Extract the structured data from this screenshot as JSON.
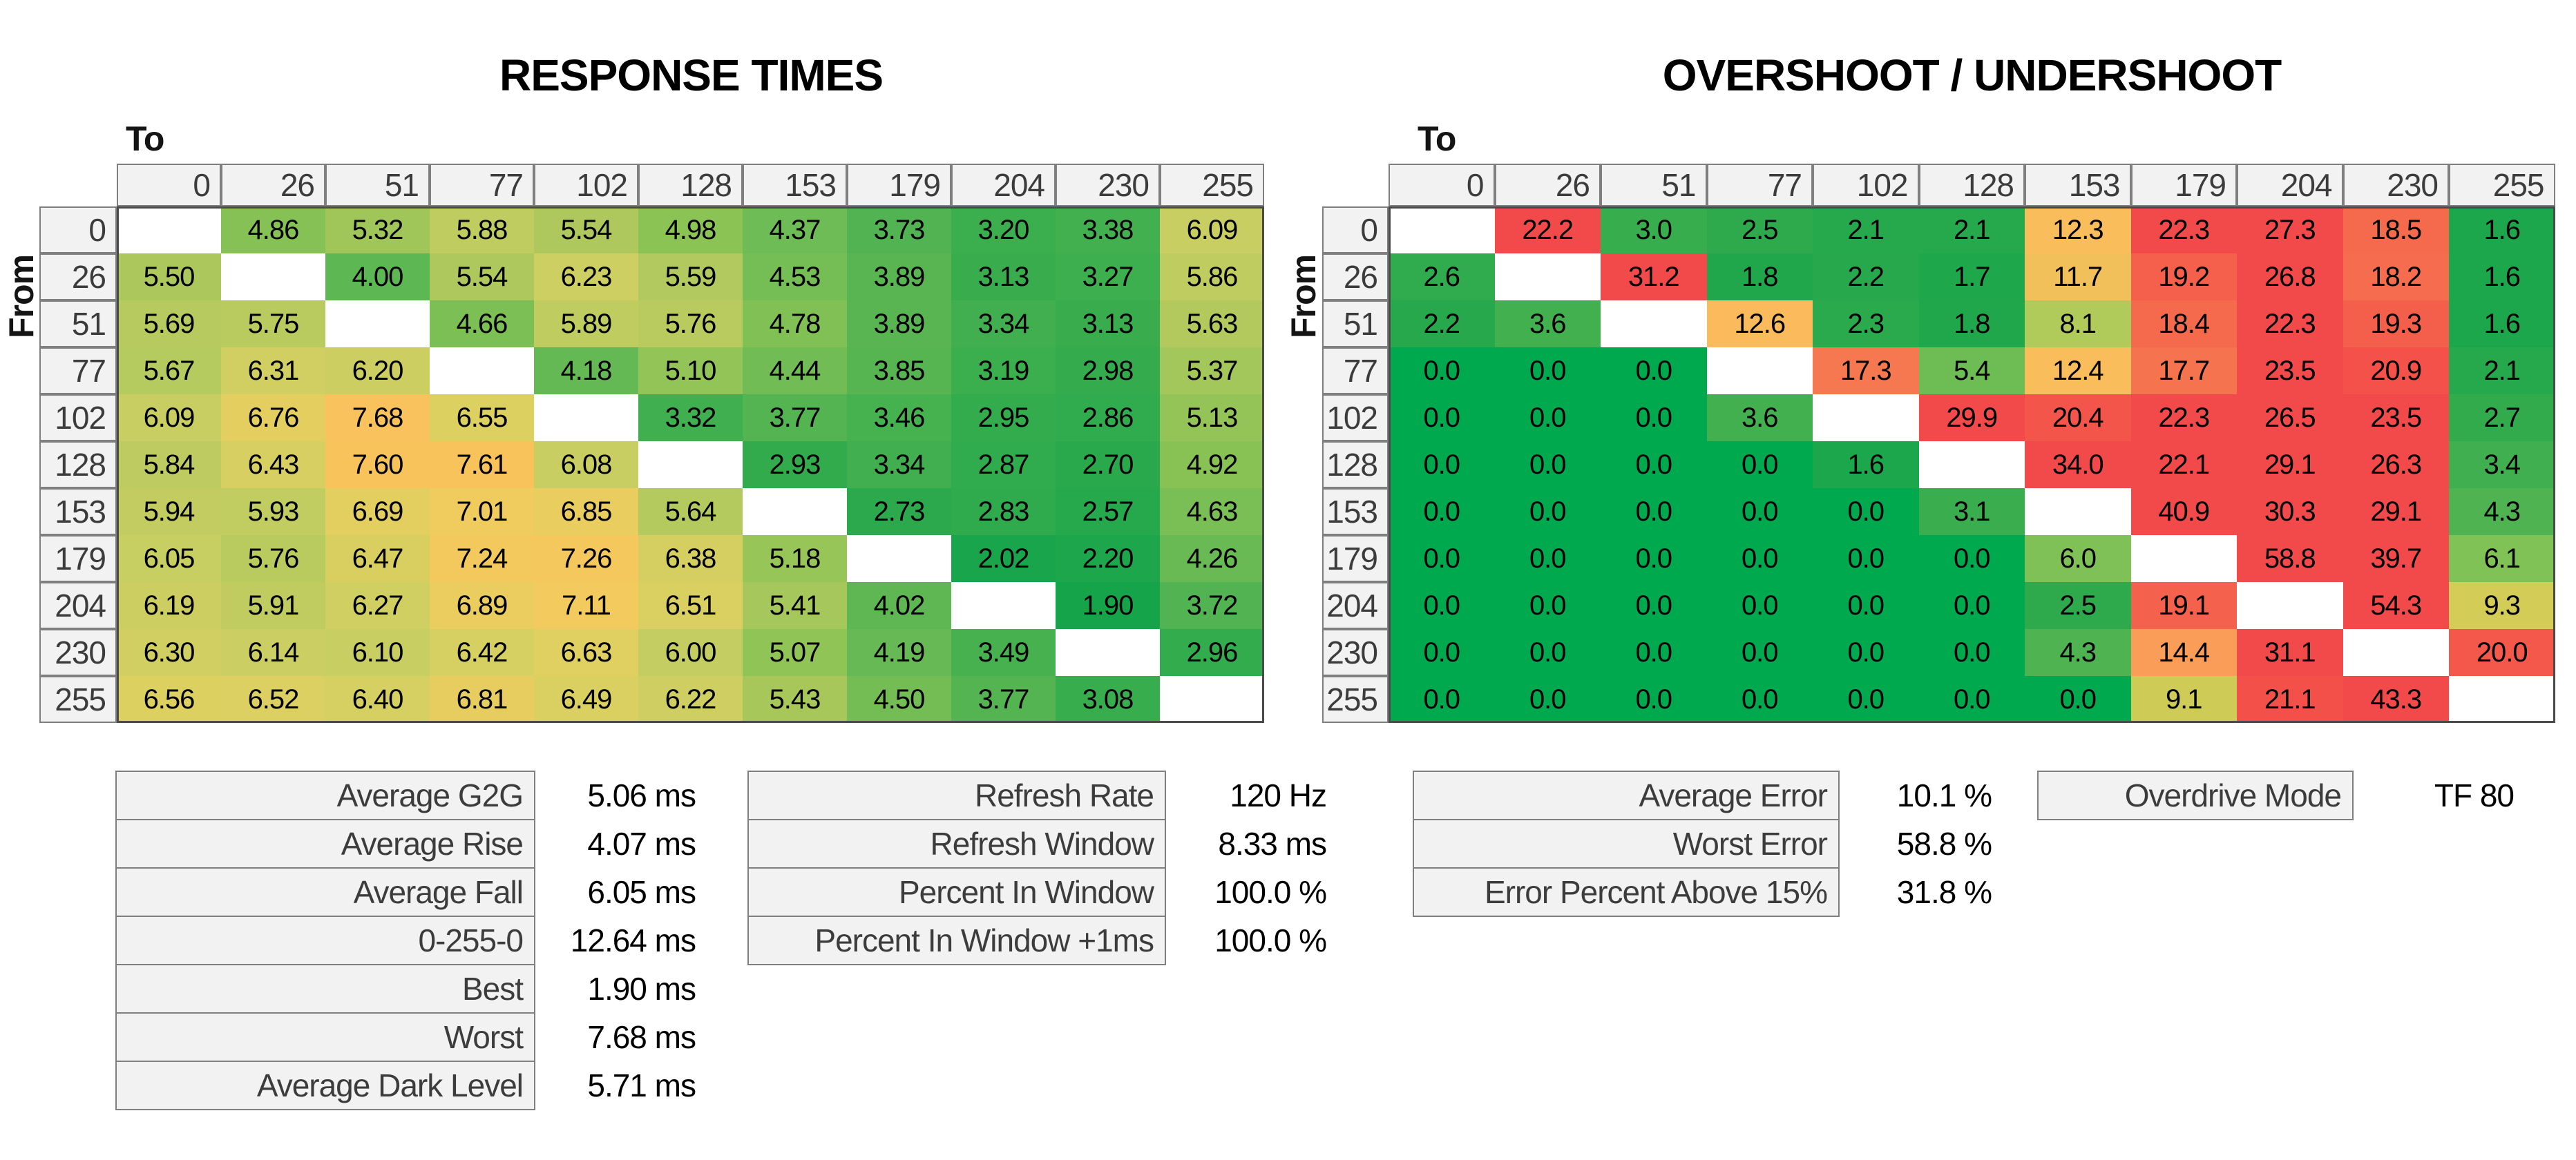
{
  "colors": {
    "background": "#FFFFFF",
    "header_bg": "#F2F2F2",
    "header_border": "#7F7F7F",
    "header_text": "#3C3C3C",
    "grid_frame": "#4A4A4A",
    "cell_text": "#000000",
    "green_min": "#00A94D",
    "red_max": "#F2494A"
  },
  "chart_data": [
    {
      "type": "heatmap",
      "title": "RESPONSE TIMES",
      "xlabel": "To",
      "ylabel": "From",
      "unit": "ms",
      "decimals": 2,
      "categories": [
        0,
        26,
        51,
        77,
        102,
        128,
        153,
        179,
        204,
        230,
        255
      ],
      "values": [
        [
          null,
          4.86,
          5.32,
          5.88,
          5.54,
          4.98,
          4.37,
          3.73,
          3.2,
          3.38,
          6.09
        ],
        [
          5.5,
          null,
          4.0,
          5.54,
          6.23,
          5.59,
          4.53,
          3.89,
          3.13,
          3.27,
          5.86
        ],
        [
          5.69,
          5.75,
          null,
          4.66,
          5.89,
          5.76,
          4.78,
          3.89,
          3.34,
          3.13,
          5.63
        ],
        [
          5.67,
          6.31,
          6.2,
          null,
          4.18,
          5.1,
          4.44,
          3.85,
          3.19,
          2.98,
          5.37
        ],
        [
          6.09,
          6.76,
          7.68,
          6.55,
          null,
          3.32,
          3.77,
          3.46,
          2.95,
          2.86,
          5.13
        ],
        [
          5.84,
          6.43,
          7.6,
          7.61,
          6.08,
          null,
          2.93,
          3.34,
          2.87,
          2.7,
          4.92
        ],
        [
          5.94,
          5.93,
          6.69,
          7.01,
          6.85,
          5.64,
          null,
          2.73,
          2.83,
          2.57,
          4.63
        ],
        [
          6.05,
          5.76,
          6.47,
          7.24,
          7.26,
          6.38,
          5.18,
          null,
          2.02,
          2.2,
          4.26
        ],
        [
          6.19,
          5.91,
          6.27,
          6.89,
          7.11,
          6.51,
          5.41,
          4.02,
          null,
          1.9,
          3.72
        ],
        [
          6.3,
          6.14,
          6.1,
          6.42,
          6.63,
          6.0,
          5.07,
          4.19,
          3.49,
          null,
          2.96
        ],
        [
          6.56,
          6.52,
          6.4,
          6.81,
          6.49,
          6.22,
          5.43,
          4.5,
          3.77,
          3.08,
          null
        ]
      ],
      "diagonal_color": "#FFFFFF",
      "color_scale": [
        [
          1.9,
          "#16A44B"
        ],
        [
          2.6,
          "#27A84C"
        ],
        [
          3.2,
          "#3BAE4E"
        ],
        [
          3.8,
          "#54B451"
        ],
        [
          4.4,
          "#6FBC55"
        ],
        [
          5.0,
          "#8CC355"
        ],
        [
          5.6,
          "#B2C95E"
        ],
        [
          6.1,
          "#C9CE62"
        ],
        [
          6.6,
          "#DED061"
        ],
        [
          7.0,
          "#F0CB5E"
        ],
        [
          7.7,
          "#FAC25C"
        ]
      ]
    },
    {
      "type": "heatmap",
      "title": "OVERSHOOT / UNDERSHOOT",
      "xlabel": "To",
      "ylabel": "From",
      "unit": "%",
      "decimals": 1,
      "categories": [
        0,
        26,
        51,
        77,
        102,
        128,
        153,
        179,
        204,
        230,
        255
      ],
      "values": [
        [
          null,
          22.2,
          3.0,
          2.5,
          2.1,
          2.1,
          12.3,
          22.3,
          27.3,
          18.5,
          1.6
        ],
        [
          2.6,
          null,
          31.2,
          1.8,
          2.2,
          1.7,
          11.7,
          19.2,
          26.8,
          18.2,
          1.6
        ],
        [
          2.2,
          3.6,
          null,
          12.6,
          2.3,
          1.8,
          8.1,
          18.4,
          22.3,
          19.3,
          1.6
        ],
        [
          0.0,
          0.0,
          0.0,
          null,
          17.3,
          5.4,
          12.4,
          17.7,
          23.5,
          20.9,
          2.1
        ],
        [
          0.0,
          0.0,
          0.0,
          3.6,
          null,
          29.9,
          20.4,
          22.3,
          26.5,
          23.5,
          2.7
        ],
        [
          0.0,
          0.0,
          0.0,
          0.0,
          1.6,
          null,
          34.0,
          22.1,
          29.1,
          26.3,
          3.4
        ],
        [
          0.0,
          0.0,
          0.0,
          0.0,
          0.0,
          3.1,
          null,
          40.9,
          30.3,
          29.1,
          4.3
        ],
        [
          0.0,
          0.0,
          0.0,
          0.0,
          0.0,
          0.0,
          6.0,
          null,
          58.8,
          39.7,
          6.1
        ],
        [
          0.0,
          0.0,
          0.0,
          0.0,
          0.0,
          0.0,
          2.5,
          19.1,
          null,
          54.3,
          9.3
        ],
        [
          0.0,
          0.0,
          0.0,
          0.0,
          0.0,
          0.0,
          4.3,
          14.4,
          31.1,
          null,
          20.0
        ],
        [
          0.0,
          0.0,
          0.0,
          0.0,
          0.0,
          0.0,
          0.0,
          9.1,
          21.1,
          43.3,
          null
        ]
      ],
      "diagonal_color": "#FFFFFF",
      "color_scale": [
        [
          0.0,
          "#00A94D"
        ],
        [
          2.0,
          "#24A74C"
        ],
        [
          3.0,
          "#38AD4E"
        ],
        [
          4.5,
          "#53B451"
        ],
        [
          6.0,
          "#7FC156"
        ],
        [
          8.0,
          "#AECB5B"
        ],
        [
          9.5,
          "#D9CC55"
        ],
        [
          12.5,
          "#FBBC5C"
        ],
        [
          14.5,
          "#F99B58"
        ],
        [
          17.5,
          "#F5764F"
        ],
        [
          19.5,
          "#F45C4B"
        ],
        [
          22.0,
          "#F2494A"
        ],
        [
          100.0,
          "#F2494A"
        ]
      ]
    }
  ],
  "summary_tables": [
    {
      "name": "response-summary",
      "rows": [
        {
          "label": "Average G2G",
          "value": "5.06",
          "unit": "ms"
        },
        {
          "label": "Average Rise",
          "value": "4.07",
          "unit": "ms"
        },
        {
          "label": "Average Fall",
          "value": "6.05",
          "unit": "ms"
        },
        {
          "label": "0-255-0",
          "value": "12.64",
          "unit": "ms"
        },
        {
          "label": "Best",
          "value": "1.90",
          "unit": "ms"
        },
        {
          "label": "Worst",
          "value": "7.68",
          "unit": "ms"
        },
        {
          "label": "Average Dark Level",
          "value": "5.71",
          "unit": "ms"
        }
      ]
    },
    {
      "name": "refresh-summary",
      "rows": [
        {
          "label": "Refresh Rate",
          "value": "120",
          "unit": "Hz"
        },
        {
          "label": "Refresh Window",
          "value": "8.33",
          "unit": "ms"
        },
        {
          "label": "Percent In Window",
          "value": "100.0",
          "unit": "%"
        },
        {
          "label": "Percent In Window +1ms",
          "value": "100.0",
          "unit": "%"
        }
      ]
    },
    {
      "name": "error-summary",
      "rows": [
        {
          "label": "Average Error",
          "value": "10.1",
          "unit": "%"
        },
        {
          "label": "Worst Error",
          "value": "58.8",
          "unit": "%"
        },
        {
          "label": "Error Percent Above 15%",
          "value": "31.8",
          "unit": "%"
        }
      ]
    },
    {
      "name": "overdrive-summary",
      "rows": [
        {
          "label": "Overdrive Mode",
          "value": "TF 80",
          "unit": ""
        }
      ]
    }
  ]
}
